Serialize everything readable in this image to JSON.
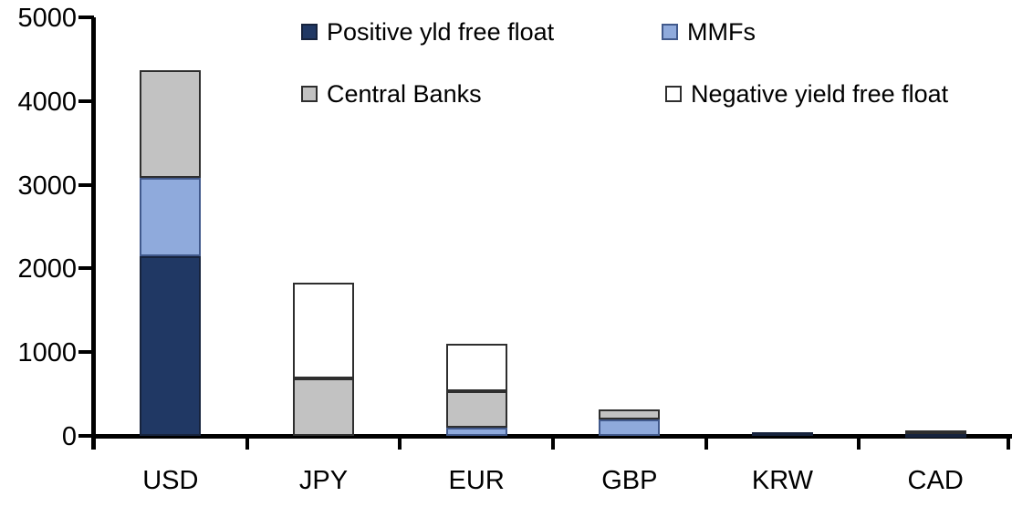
{
  "chart_data": {
    "type": "bar",
    "stacked": true,
    "title": "",
    "xlabel": "",
    "ylabel": "",
    "categories": [
      "USD",
      "JPY",
      "EUR",
      "GBP",
      "KRW",
      "CAD"
    ],
    "series": [
      {
        "name": "Positive yld free float",
        "color": "#203864",
        "border": "#16233d",
        "values": [
          2150,
          0,
          0,
          0,
          40,
          25
        ]
      },
      {
        "name": "MMFs",
        "color": "#8FAADC",
        "border": "#41598c",
        "values": [
          930,
          0,
          100,
          200,
          0,
          0
        ]
      },
      {
        "name": "Central Banks",
        "color": "#C2C2C2",
        "border": "#2e2e2e",
        "values": [
          1290,
          690,
          430,
          120,
          0,
          40
        ]
      },
      {
        "name": "Negative yield free float",
        "color": "#FFFFFF",
        "border": "#2e2e2e",
        "values": [
          0,
          1140,
          570,
          0,
          0,
          0
        ]
      }
    ],
    "totals": {
      "USD": 4370,
      "JPY": 1830,
      "EUR": 1100,
      "GBP": 320,
      "KRW": 40,
      "CAD": 65
    },
    "ylim": [
      0,
      5000
    ],
    "yticks": [
      "0",
      "1000",
      "2000",
      "3000",
      "4000",
      "5000"
    ],
    "grid": false,
    "legend_position": "top",
    "legend_order": [
      "Positive yld free float",
      "MMFs",
      "Central Banks",
      "Negative yield free float"
    ],
    "axis_color": "#000000"
  }
}
